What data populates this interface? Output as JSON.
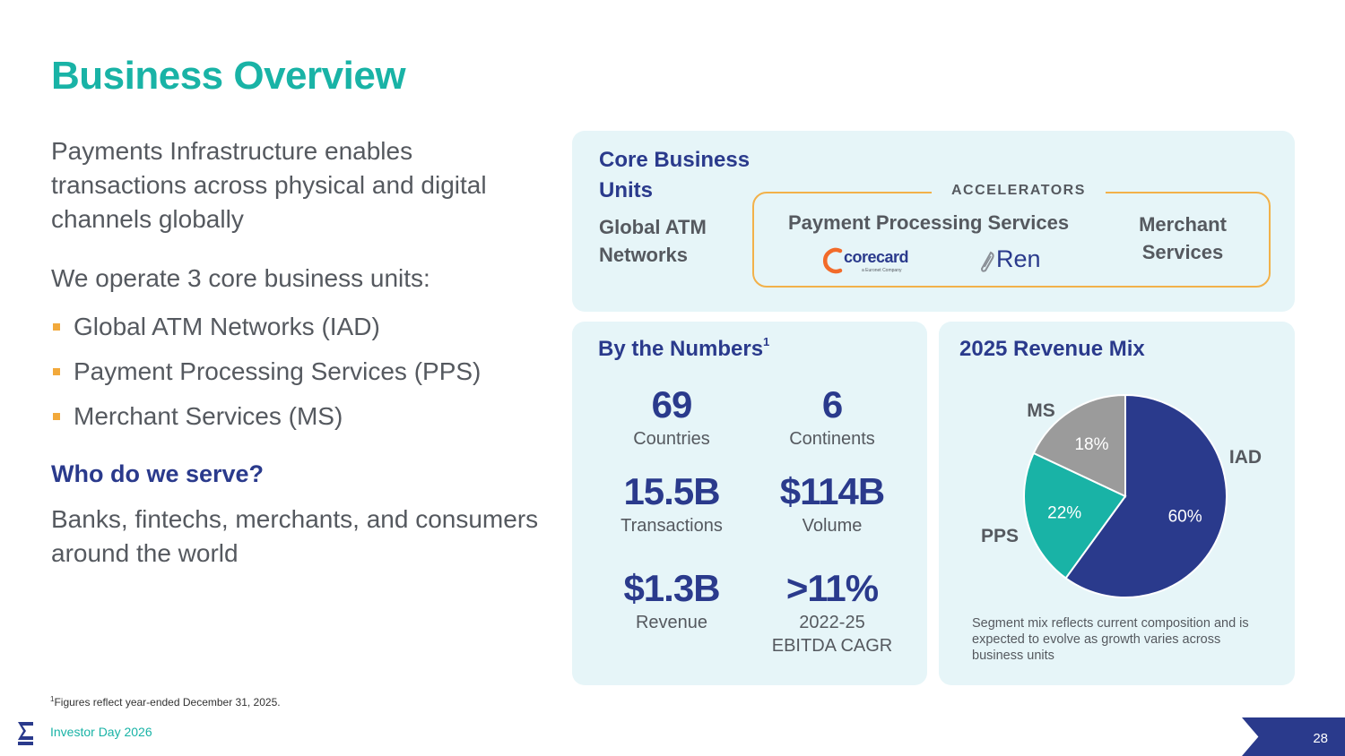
{
  "title": "Business Overview",
  "left": {
    "intro": "Payments Infrastructure enables transactions across physical and digital channels globally",
    "units_intro": "We operate 3 core business units:",
    "units": [
      "Global ATM Networks (IAD)",
      "Payment Processing Services (PPS)",
      "Merchant Services (MS)"
    ],
    "serve_heading": "Who do we serve?",
    "serve_text": "Banks, fintechs, merchants, and consumers around the world"
  },
  "core": {
    "heading": "Core Business Units",
    "atm": "Global ATM Networks",
    "accelerators": "ACCELERATORS",
    "pps": "Payment Processing Services",
    "ms": "Merchant Services",
    "logo_corecard": "corecard",
    "logo_corecard_sub": "a Euronet Company",
    "logo_ren": "Ren"
  },
  "numbers": {
    "heading": "By the Numbers",
    "heading_sup": "1",
    "stats": [
      {
        "value": "69",
        "label": "Countries"
      },
      {
        "value": "6",
        "label": "Continents"
      },
      {
        "value": "15.5B",
        "label": "Transactions"
      },
      {
        "value": "$114B",
        "label": "Volume"
      },
      {
        "value": "$1.3B",
        "label": "Revenue"
      },
      {
        "value": ">11%",
        "label": "2022-25",
        "label2": "EBITDA CAGR"
      }
    ]
  },
  "mix": {
    "heading": "2025 Revenue Mix",
    "note": "Segment mix reflects current composition and is expected to evolve as growth varies across business units"
  },
  "chart_data": {
    "type": "pie",
    "title": "2025 Revenue Mix",
    "slices": [
      {
        "label": "IAD",
        "value": 60,
        "value_label": "60%",
        "color": "#2a3a8c"
      },
      {
        "label": "PPS",
        "value": 22,
        "value_label": "22%",
        "color": "#19b3a6"
      },
      {
        "label": "MS",
        "value": 18,
        "value_label": "18%",
        "color": "#9b9b9b"
      }
    ]
  },
  "footnote_sup": "1",
  "footnote": "Figures reflect year-ended December 31, 2025.",
  "footer": "Investor Day 2026",
  "page_number": "28",
  "colors": {
    "teal": "#19b3a6",
    "navy": "#2a3a8c",
    "orange": "#f2a93b",
    "panel": "#e6f5f8",
    "gray": "#9b9b9b"
  }
}
